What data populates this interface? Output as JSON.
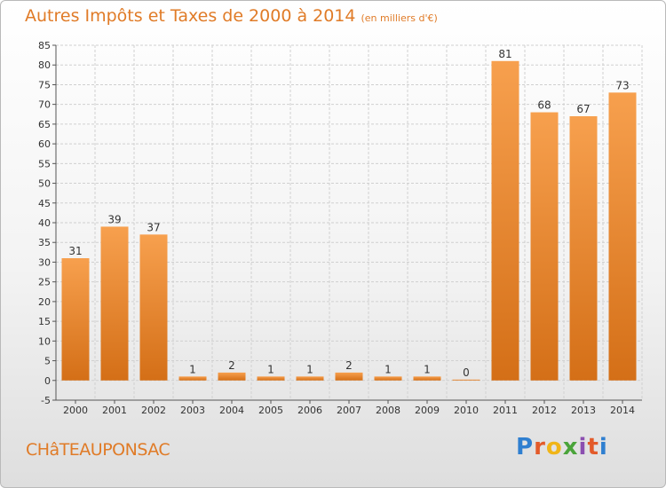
{
  "title": "Autres Impôts et Taxes de 2000 à 2014",
  "unit": "(en milliers d'€)",
  "commune": "CHâTEAUPONSAC",
  "logo": {
    "text": "Proxiti",
    "colors": [
      "#2f7fd0",
      "#e35b2a",
      "#f0b518",
      "#4aa43a",
      "#8b4fb0",
      "#e35b2a",
      "#2f7fd0"
    ]
  },
  "colors": {
    "bar_top": "#f7a04e",
    "bar_bottom": "#d46f17",
    "title": "#e07b27"
  },
  "chart_data": {
    "type": "bar",
    "title": "Autres Impôts et Taxes de 2000 à 2014",
    "categories": [
      "2000",
      "2001",
      "2002",
      "2003",
      "2004",
      "2005",
      "2006",
      "2007",
      "2008",
      "2009",
      "2010",
      "2011",
      "2012",
      "2013",
      "2014"
    ],
    "values": [
      31,
      39,
      37,
      1,
      2,
      1,
      1,
      2,
      1,
      1,
      0,
      81,
      68,
      67,
      73
    ],
    "ylim": [
      -5,
      85
    ],
    "yticks": [
      -5,
      0,
      5,
      10,
      15,
      20,
      25,
      30,
      35,
      40,
      45,
      50,
      55,
      60,
      65,
      70,
      75,
      80,
      85
    ],
    "grid": true
  }
}
